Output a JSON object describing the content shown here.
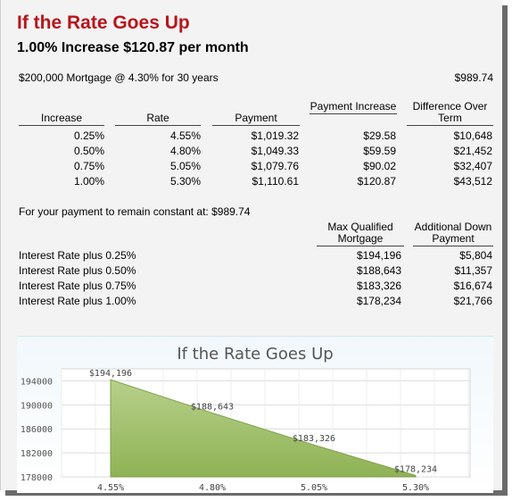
{
  "header": {
    "title": "If the Rate Goes Up",
    "subtitle": "1.00% Increase $120.87 per month"
  },
  "mortgage": {
    "description": "$200,000 Mortgage @ 4.30% for 30 years",
    "payment": "$989.74"
  },
  "increase_table": {
    "headers": [
      "Increase",
      "Rate",
      "Payment",
      "Payment Increase",
      "Difference Over Term"
    ],
    "rows": [
      [
        "0.25%",
        "4.55%",
        "$1,019.32",
        "$29.58",
        "$10,648"
      ],
      [
        "0.50%",
        "4.80%",
        "$1,049.33",
        "$59.59",
        "$21,452"
      ],
      [
        "0.75%",
        "5.05%",
        "$1,079.76",
        "$90.02",
        "$32,407"
      ],
      [
        "1.00%",
        "5.30%",
        "$1,110.61",
        "$120.87",
        "$43,512"
      ]
    ]
  },
  "constant": {
    "label": "For your payment to remain constant at: $989.74",
    "headers": [
      "Max Qualified Mortgage",
      "Additional Down Payment"
    ],
    "rows": [
      [
        "Interest Rate plus 0.25%",
        "$194,196",
        "$5,804"
      ],
      [
        "Interest Rate plus 0.50%",
        "$188,643",
        "$11,357"
      ],
      [
        "Interest Rate plus 0.75%",
        "$183,326",
        "$16,674"
      ],
      [
        "Interest Rate plus 1.00%",
        "$178,234",
        "$21,766"
      ]
    ]
  },
  "chart_data": {
    "type": "area",
    "title": "If the Rate Goes Up",
    "categories": [
      "4.55%",
      "4.80%",
      "5.05%",
      "5.30%"
    ],
    "values": [
      194196,
      188643,
      183326,
      178234
    ],
    "data_labels": [
      "$194,196",
      "$188,643",
      "$183,326",
      "$178,234"
    ],
    "y_ticks": [
      178000,
      182000,
      186000,
      190000,
      194000
    ],
    "ylim": [
      178000,
      196000
    ],
    "grid": true,
    "fill_color": "#8fb255"
  }
}
